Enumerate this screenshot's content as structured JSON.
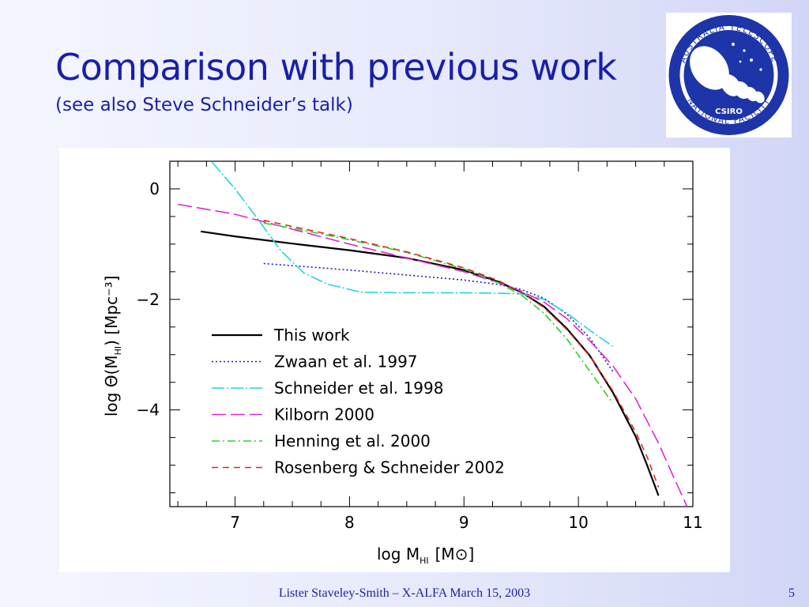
{
  "slide": {
    "title": "Comparison with previous work",
    "subtitle": "(see also Steve Schneider’s talk)",
    "footer": "Lister Staveley-Smith – X-ALFA March 15, 2003",
    "page_number": "5"
  },
  "logo": {
    "top_text": "AUSTRALIA TELESCOPE",
    "bottom_text": "NATIONAL FACILITY",
    "center_text": "CSIRO",
    "colors": {
      "ring": "#1d35a8",
      "dish": "#ffffff"
    }
  },
  "chart_data": {
    "type": "line",
    "xlabel": "log M",
    "xlabel_sub": "HI",
    "xlabel_unit": "[M⊙]",
    "ylabel": "log Θ(M",
    "ylabel_sub": "HI",
    "ylabel_rest": ") [Mpc⁻³]",
    "xlim": [
      6.43,
      11.0
    ],
    "ylim": [
      -5.75,
      0.5
    ],
    "x_ticks": [
      7,
      8,
      9,
      10,
      11
    ],
    "x_tick_labels": [
      "7",
      "8",
      "9",
      "10",
      "11"
    ],
    "y_ticks": [
      0,
      -2,
      -4
    ],
    "y_tick_labels": [
      "0",
      "−2",
      "−4"
    ],
    "legend_position": "lower-left",
    "series": [
      {
        "name": "This work",
        "color": "#000000",
        "dash": "solid",
        "points": [
          [
            6.7,
            -0.77
          ],
          [
            7.0,
            -0.86
          ],
          [
            7.5,
            -0.99
          ],
          [
            8.0,
            -1.11
          ],
          [
            8.5,
            -1.25
          ],
          [
            9.0,
            -1.47
          ],
          [
            9.3,
            -1.68
          ],
          [
            9.5,
            -1.87
          ],
          [
            9.7,
            -2.13
          ],
          [
            9.9,
            -2.53
          ],
          [
            10.1,
            -3.02
          ],
          [
            10.3,
            -3.68
          ],
          [
            10.5,
            -4.48
          ],
          [
            10.6,
            -5.0
          ],
          [
            10.7,
            -5.55
          ]
        ]
      },
      {
        "name": "Zwaan et al. 1997",
        "color": "#1c1cb8",
        "dash": "2,3",
        "points": [
          [
            7.25,
            -1.35
          ],
          [
            7.5,
            -1.39
          ],
          [
            8.0,
            -1.47
          ],
          [
            8.5,
            -1.56
          ],
          [
            9.0,
            -1.65
          ],
          [
            9.3,
            -1.73
          ],
          [
            9.5,
            -1.82
          ],
          [
            9.7,
            -1.98
          ],
          [
            9.9,
            -2.27
          ],
          [
            10.1,
            -2.7
          ],
          [
            10.3,
            -3.3
          ]
        ]
      },
      {
        "name": "Schneider et al. 1998",
        "color": "#22d4dc",
        "dash": "16,3,2,3",
        "points": [
          [
            6.8,
            0.48
          ],
          [
            7.0,
            0.0
          ],
          [
            7.2,
            -0.55
          ],
          [
            7.4,
            -1.12
          ],
          [
            7.6,
            -1.52
          ],
          [
            7.8,
            -1.72
          ],
          [
            8.1,
            -1.87
          ],
          [
            8.5,
            -1.88
          ],
          [
            9.0,
            -1.88
          ],
          [
            9.3,
            -1.89
          ],
          [
            9.5,
            -1.9
          ],
          [
            9.7,
            -2.0
          ],
          [
            9.9,
            -2.25
          ],
          [
            10.1,
            -2.56
          ],
          [
            10.3,
            -2.85
          ]
        ]
      },
      {
        "name": "Kilborn 2000",
        "color": "#dd28d2",
        "dash": "18,6",
        "points": [
          [
            6.5,
            -0.28
          ],
          [
            7.0,
            -0.46
          ],
          [
            7.5,
            -0.73
          ],
          [
            8.0,
            -1.0
          ],
          [
            8.5,
            -1.25
          ],
          [
            9.0,
            -1.5
          ],
          [
            9.3,
            -1.7
          ],
          [
            9.5,
            -1.85
          ],
          [
            9.7,
            -2.05
          ],
          [
            9.9,
            -2.35
          ],
          [
            10.1,
            -2.75
          ],
          [
            10.3,
            -3.2
          ],
          [
            10.5,
            -3.8
          ],
          [
            10.7,
            -4.6
          ],
          [
            10.85,
            -5.3
          ],
          [
            10.95,
            -5.75
          ]
        ]
      },
      {
        "name": "Henning et al. 2000",
        "color": "#2ad22a",
        "dash": "10,4,2,4",
        "points": [
          [
            7.25,
            -0.62
          ],
          [
            7.5,
            -0.71
          ],
          [
            8.0,
            -0.92
          ],
          [
            8.5,
            -1.15
          ],
          [
            9.0,
            -1.45
          ],
          [
            9.3,
            -1.7
          ],
          [
            9.5,
            -1.92
          ],
          [
            9.7,
            -2.25
          ],
          [
            9.9,
            -2.72
          ],
          [
            10.1,
            -3.3
          ],
          [
            10.3,
            -3.88
          ]
        ]
      },
      {
        "name": "Rosenberg & Schneider 2002",
        "color": "#e02a22",
        "dash": "8,6",
        "points": [
          [
            7.25,
            -0.57
          ],
          [
            7.5,
            -0.68
          ],
          [
            8.0,
            -0.9
          ],
          [
            8.5,
            -1.14
          ],
          [
            9.0,
            -1.43
          ],
          [
            9.3,
            -1.66
          ],
          [
            9.5,
            -1.87
          ],
          [
            9.7,
            -2.15
          ],
          [
            9.9,
            -2.55
          ],
          [
            10.1,
            -3.03
          ],
          [
            10.3,
            -3.65
          ],
          [
            10.5,
            -4.4
          ],
          [
            10.6,
            -4.85
          ],
          [
            10.7,
            -5.4
          ]
        ]
      }
    ]
  }
}
